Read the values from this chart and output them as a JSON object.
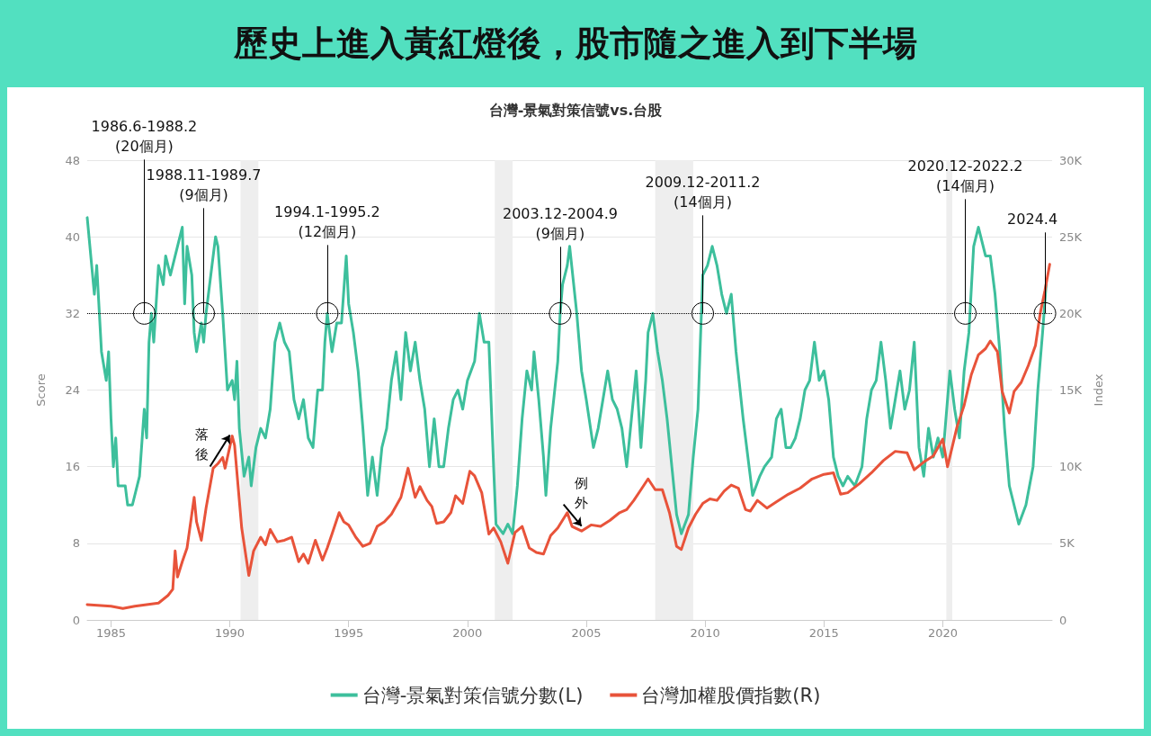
{
  "chart_data": {
    "type": "line",
    "title": "歷史上進入黃紅燈後，股市隨之進入到下半場",
    "subtitle": "台灣-景氣對策信號vs.台股",
    "ylabel": "Score",
    "y2label": "Index",
    "xlim": [
      1984,
      2024.6
    ],
    "xticks": [
      1985,
      1990,
      1995,
      2000,
      2005,
      2010,
      2015,
      2020
    ],
    "ylim": [
      0,
      48
    ],
    "yticks": [
      0,
      8,
      16,
      24,
      32,
      40,
      48
    ],
    "y2lim": [
      0,
      30000
    ],
    "y2ticks": [
      {
        "value": 0,
        "label": "0"
      },
      {
        "value": 5000,
        "label": "5K"
      },
      {
        "value": 10000,
        "label": "10K"
      },
      {
        "value": 15000,
        "label": "15K"
      },
      {
        "value": 20000,
        "label": "20K"
      },
      {
        "value": 25000,
        "label": "25K"
      },
      {
        "value": 30000,
        "label": "30K"
      }
    ],
    "grid": "y",
    "legend": "bottom",
    "marker": "none",
    "line_style": "solid",
    "series": [
      {
        "name": "台灣-景氣對策信號分數(L)",
        "color": "#3dbf9c",
        "x": [
          1984.0,
          1984.3,
          1984.4,
          1984.6,
          1984.8,
          1984.9,
          1985.0,
          1985.1,
          1985.2,
          1985.3,
          1985.6,
          1985.7,
          1985.9,
          1986.2,
          1986.4,
          1986.5,
          1986.6,
          1986.7,
          1986.8,
          1987.0,
          1987.2,
          1987.3,
          1987.5,
          1987.7,
          1988.0,
          1988.1,
          1988.2,
          1988.4,
          1988.5,
          1988.6,
          1988.8,
          1988.9,
          1989.0,
          1989.2,
          1989.4,
          1989.5,
          1989.7,
          1989.9,
          1990.1,
          1990.2,
          1990.3,
          1990.4,
          1990.6,
          1990.8,
          1990.9,
          1991.1,
          1991.3,
          1991.5,
          1991.7,
          1991.9,
          1992.1,
          1992.3,
          1992.5,
          1992.7,
          1992.9,
          1993.1,
          1993.3,
          1993.5,
          1993.7,
          1993.9,
          1994.0,
          1994.1,
          1994.3,
          1994.5,
          1994.7,
          1994.9,
          1995.0,
          1995.2,
          1995.4,
          1995.6,
          1995.8,
          1996.0,
          1996.2,
          1996.4,
          1996.6,
          1996.8,
          1997.0,
          1997.2,
          1997.4,
          1997.6,
          1997.8,
          1998.0,
          1998.2,
          1998.4,
          1998.6,
          1998.8,
          1999.0,
          1999.2,
          1999.4,
          1999.6,
          1999.8,
          2000.0,
          2000.3,
          2000.5,
          2000.7,
          2000.9,
          2001.1,
          2001.2,
          2001.5,
          2001.7,
          2001.9,
          2002.1,
          2002.3,
          2002.5,
          2002.7,
          2002.8,
          2003.0,
          2003.2,
          2003.3,
          2003.5,
          2003.8,
          2003.9,
          2004.0,
          2004.2,
          2004.3,
          2004.6,
          2004.8,
          2005.0,
          2005.3,
          2005.5,
          2005.7,
          2005.9,
          2006.1,
          2006.3,
          2006.5,
          2006.7,
          2006.9,
          2007.1,
          2007.3,
          2007.5,
          2007.6,
          2007.8,
          2008.0,
          2008.2,
          2008.4,
          2008.6,
          2008.8,
          2009.0,
          2009.3,
          2009.5,
          2009.7,
          2009.9,
          2010.1,
          2010.3,
          2010.5,
          2010.7,
          2010.9,
          2011.1,
          2011.3,
          2011.6,
          2011.8,
          2012.0,
          2012.3,
          2012.5,
          2012.8,
          2013.0,
          2013.2,
          2013.4,
          2013.6,
          2013.8,
          2014.0,
          2014.2,
          2014.4,
          2014.6,
          2014.8,
          2015.0,
          2015.2,
          2015.4,
          2015.6,
          2015.8,
          2016.0,
          2016.3,
          2016.6,
          2016.8,
          2017.0,
          2017.2,
          2017.4,
          2017.6,
          2017.8,
          2018.0,
          2018.2,
          2018.4,
          2018.6,
          2018.8,
          2019.0,
          2019.2,
          2019.4,
          2019.6,
          2019.8,
          2020.0,
          2020.3,
          2020.5,
          2020.7,
          2020.9,
          2021.1,
          2021.3,
          2021.5,
          2021.8,
          2022.0,
          2022.2,
          2022.4,
          2022.6,
          2022.8,
          2023.0,
          2023.2,
          2023.5,
          2023.8,
          2024.0,
          2024.2,
          2024.35
        ],
        "values": [
          42,
          34,
          37,
          28,
          25,
          28,
          21,
          16,
          19,
          14,
          14,
          12,
          12,
          15,
          22,
          19,
          29,
          32,
          29,
          37,
          35,
          38,
          36,
          38,
          41,
          33,
          39,
          36,
          30,
          28,
          31,
          29,
          32,
          36,
          40,
          39,
          32,
          24,
          25,
          23,
          27,
          20,
          15,
          17,
          14,
          18,
          20,
          19,
          22,
          29,
          31,
          29,
          28,
          23,
          21,
          23,
          19,
          18,
          24,
          24,
          29,
          32,
          28,
          31,
          31,
          38,
          33,
          30,
          26,
          20,
          13,
          17,
          13,
          18,
          20,
          25,
          28,
          23,
          30,
          26,
          29,
          25,
          22,
          16,
          21,
          16,
          16,
          20,
          23,
          24,
          22,
          25,
          27,
          32,
          29,
          29,
          16,
          10,
          9,
          10,
          9,
          14,
          21,
          26,
          24,
          28,
          23,
          17,
          13,
          20,
          27,
          32,
          35,
          37,
          39,
          32,
          26,
          23,
          18,
          20,
          23,
          26,
          23,
          22,
          20,
          16,
          21,
          26,
          18,
          25,
          30,
          32,
          28,
          25,
          21,
          16,
          11,
          9,
          11,
          17,
          22,
          36,
          37,
          39,
          37,
          34,
          32,
          34,
          28,
          21,
          17,
          13,
          15,
          16,
          17,
          21,
          22,
          18,
          18,
          19,
          21,
          24,
          25,
          29,
          25,
          26,
          23,
          17,
          15,
          14,
          15,
          14,
          16,
          21,
          24,
          25,
          29,
          25,
          20,
          23,
          26,
          22,
          24,
          29,
          18,
          15,
          20,
          17,
          19,
          17,
          26,
          22,
          19,
          26,
          30,
          39,
          41,
          38,
          38,
          34,
          28,
          20,
          14,
          12,
          10,
          12,
          16,
          24,
          30,
          35
        ]
      },
      {
        "name": "台灣加權股價指數(R)",
        "color": "#e8533a",
        "axis": "y2",
        "x": [
          1984.0,
          1985.0,
          1985.5,
          1986.0,
          1986.5,
          1987.0,
          1987.4,
          1987.6,
          1987.7,
          1987.8,
          1988.0,
          1988.2,
          1988.5,
          1988.6,
          1988.8,
          1989.0,
          1989.3,
          1989.5,
          1989.7,
          1989.8,
          1990.1,
          1990.2,
          1990.5,
          1990.8,
          1991.0,
          1991.3,
          1991.5,
          1991.7,
          1992.0,
          1992.3,
          1992.6,
          1992.9,
          1993.1,
          1993.3,
          1993.6,
          1993.9,
          1994.1,
          1994.3,
          1994.6,
          1994.8,
          1995.0,
          1995.3,
          1995.6,
          1995.9,
          1996.2,
          1996.5,
          1996.8,
          1997.2,
          1997.5,
          1997.8,
          1998.0,
          1998.3,
          1998.5,
          1998.7,
          1999.0,
          1999.3,
          1999.5,
          1999.8,
          2000.1,
          2000.3,
          2000.6,
          2000.9,
          2001.1,
          2001.4,
          2001.7,
          2002.0,
          2002.3,
          2002.6,
          2002.9,
          2003.2,
          2003.5,
          2003.8,
          2004.2,
          2004.4,
          2004.8,
          2005.2,
          2005.6,
          2006.0,
          2006.4,
          2006.7,
          2007.0,
          2007.3,
          2007.6,
          2007.9,
          2008.2,
          2008.5,
          2008.8,
          2009.0,
          2009.3,
          2009.6,
          2009.9,
          2010.2,
          2010.5,
          2010.8,
          2011.1,
          2011.4,
          2011.7,
          2011.9,
          2012.2,
          2012.6,
          2013.0,
          2013.5,
          2014.0,
          2014.5,
          2015.0,
          2015.4,
          2015.7,
          2016.0,
          2016.5,
          2017.0,
          2017.5,
          2018.0,
          2018.5,
          2018.8,
          2019.2,
          2019.6,
          2020.0,
          2020.2,
          2020.6,
          2020.9,
          2021.2,
          2021.5,
          2021.8,
          2022.0,
          2022.3,
          2022.5,
          2022.8,
          2023.0,
          2023.3,
          2023.6,
          2023.9,
          2024.1,
          2024.3,
          2024.5
        ],
        "values": [
          1000,
          900,
          750,
          900,
          1000,
          1100,
          1600,
          2000,
          4500,
          2800,
          3800,
          4700,
          8000,
          6400,
          5200,
          7300,
          9900,
          10200,
          10600,
          9900,
          12000,
          11400,
          6000,
          2900,
          4500,
          5400,
          4900,
          5900,
          5100,
          5200,
          5400,
          3800,
          4300,
          3700,
          5200,
          3900,
          4700,
          5600,
          7000,
          6400,
          6200,
          5400,
          4800,
          5000,
          6100,
          6400,
          6900,
          8000,
          9900,
          8000,
          8700,
          7800,
          7400,
          6300,
          6400,
          7000,
          8100,
          7600,
          9700,
          9400,
          8300,
          5600,
          6000,
          5100,
          3700,
          5700,
          6100,
          4700,
          4400,
          4300,
          5500,
          6000,
          7000,
          6100,
          5800,
          6200,
          6100,
          6500,
          7000,
          7200,
          7800,
          8500,
          9200,
          8500,
          8500,
          7000,
          4800,
          4600,
          6000,
          6900,
          7600,
          7900,
          7800,
          8400,
          8800,
          8600,
          7200,
          7100,
          7800,
          7300,
          7700,
          8200,
          8600,
          9200,
          9500,
          9600,
          8200,
          8300,
          8900,
          9600,
          10400,
          11000,
          10900,
          9800,
          10300,
          10700,
          11800,
          10000,
          12600,
          14000,
          16000,
          17300,
          17700,
          18200,
          17500,
          14900,
          13500,
          14900,
          15500,
          16600,
          17900,
          20000,
          21500,
          23200
        ]
      }
    ],
    "ref_lines": [
      {
        "axis": "y",
        "value": 32,
        "line_style": "dotted",
        "color": "#000000"
      }
    ],
    "bands": [
      {
        "axis": "x",
        "from": 1990.45,
        "to": 1991.2,
        "color": "#eeeeee"
      },
      {
        "axis": "x",
        "from": 2001.15,
        "to": 2001.9,
        "color": "#eeeeee"
      },
      {
        "axis": "x",
        "from": 2007.9,
        "to": 2009.5,
        "color": "#eeeeee"
      },
      {
        "axis": "x",
        "from": 2020.15,
        "to": 2020.4,
        "color": "#eeeeee"
      }
    ],
    "annotations": [
      {
        "text": "1986.6-1988.2\n(20個月)",
        "x": 1986.4,
        "y": 32
      },
      {
        "text": "1988.11-1989.7\n(9個月)",
        "x": 1988.9,
        "y": 32
      },
      {
        "text": "1994.1-1995.2\n(12個月)",
        "x": 1994.1,
        "y": 32
      },
      {
        "text": "2003.12-2004.9\n(9個月)",
        "x": 2003.9,
        "y": 32
      },
      {
        "text": "2009.12-2011.2\n(14個月)",
        "x": 2009.9,
        "y": 32
      },
      {
        "text": "2020.12-2022.2\n(14個月)",
        "x": 2020.95,
        "y": 32
      },
      {
        "text": "2024.4",
        "x": 2024.3,
        "y": 32
      },
      {
        "text": "落後",
        "x": 1990.0,
        "y": 19.3
      },
      {
        "text": "例外",
        "x": 2004.8,
        "y": 9.8
      }
    ]
  }
}
